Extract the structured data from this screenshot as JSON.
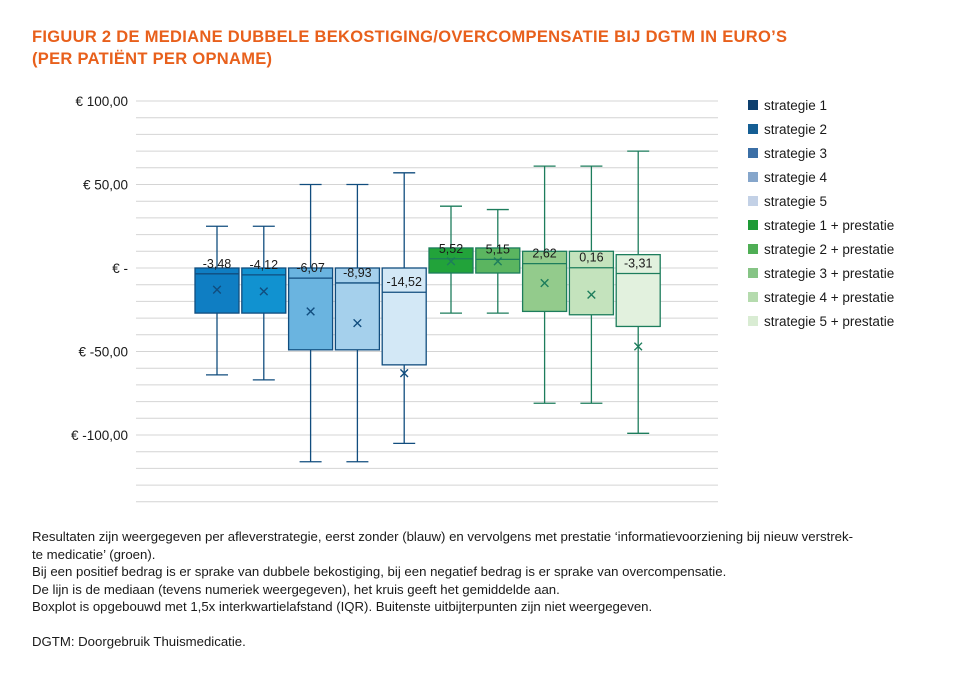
{
  "title_line1": "FIGUUR 2 DE MEDIANE DUBBELE BEKOSTIGING/OVERCOMPENSATIE BIJ DGTM IN EURO’S",
  "title_line2": "(PER PATIËNT PER OPNAME)",
  "notes": [
    "Resultaten zijn weergegeven per afleverstrategie, eerst zonder (blauw) en vervolgens met prestatie ‘informatievoorziening bij nieuw verstrek-",
    "te medicatie’ (groen).",
    "Bij een positief bedrag is er sprake van dubbele bekostiging, bij een negatief bedrag is er sprake van overcompensatie.",
    "De lijn is de mediaan (tevens numeriek weergegeven), het kruis geeft het gemiddelde aan.",
    "Boxplot is opgebouwd met 1,5x interkwartielafstand (IQR). Buitenste uitbijterpunten zijn niet weergegeven."
  ],
  "footer": "DGTM: Doorgebruik Thuismedicatie.",
  "chart_data": {
    "type": "boxplot",
    "ylim": [
      -140,
      100
    ],
    "y_ticks": [
      {
        "value": 100,
        "label": "€ 100,00"
      },
      {
        "value": 50,
        "label": "€ 50,00"
      },
      {
        "value": 0,
        "label": "€ -"
      },
      {
        "value": -50,
        "label": "€ -50,00"
      },
      {
        "value": -100,
        "label": "€ -100,00"
      }
    ],
    "grid_step": 10,
    "legend_position": "right",
    "series": [
      {
        "name": "strategie 1",
        "legend_color": "#0d3f6e",
        "fill": "#0f7ec3",
        "stroke": "#114d7e",
        "whisker_low": -64,
        "q1": -27,
        "median": -3.48,
        "q3": 0,
        "whisker_high": 25,
        "mean": -13,
        "median_label": "-3,48"
      },
      {
        "name": "strategie 2",
        "legend_color": "#155e94",
        "fill": "#1192d0",
        "stroke": "#114d7e",
        "whisker_low": -67,
        "q1": -27,
        "median": -4.12,
        "q3": 0,
        "whisker_high": 25,
        "mean": -14,
        "median_label": "-4,12"
      },
      {
        "name": "strategie 3",
        "legend_color": "#3b6fa6",
        "fill": "#6ab4e0",
        "stroke": "#114d7e",
        "whisker_low": -116,
        "q1": -49,
        "median": -6.07,
        "q3": 0,
        "whisker_high": 50,
        "mean": -26,
        "median_label": "-6,07"
      },
      {
        "name": "strategie 4",
        "legend_color": "#86a6cb",
        "fill": "#a5d0ec",
        "stroke": "#114d7e",
        "whisker_low": -116,
        "q1": -49,
        "median": -8.93,
        "q3": 0,
        "whisker_high": 50,
        "mean": -33,
        "median_label": "-8,93"
      },
      {
        "name": "strategie 5",
        "legend_color": "#c3d1e6",
        "fill": "#d3e8f6",
        "stroke": "#114d7e",
        "whisker_low": -105,
        "q1": -58,
        "median": -14.52,
        "q3": 0,
        "whisker_high": 57,
        "mean": -63,
        "median_label": "-14,52"
      },
      {
        "name": "strategie 1 + prestatie",
        "legend_color": "#1e9a36",
        "fill": "#22a33a",
        "stroke": "#1d7d5c",
        "whisker_low": -27,
        "q1": -3,
        "median": 5.52,
        "q3": 12,
        "whisker_high": 37,
        "mean": 4,
        "median_label": "5,52"
      },
      {
        "name": "strategie 2 + prestatie",
        "legend_color": "#4fae55",
        "fill": "#5bb560",
        "stroke": "#1d7d5c",
        "whisker_low": -27,
        "q1": -3,
        "median": 5.15,
        "q3": 12,
        "whisker_high": 35,
        "mean": 4,
        "median_label": "5,15"
      },
      {
        "name": "strategie 3 + prestatie",
        "legend_color": "#86c485",
        "fill": "#93cb8c",
        "stroke": "#1d7d5c",
        "whisker_low": -81,
        "q1": -26,
        "median": 2.62,
        "q3": 10,
        "whisker_high": 61,
        "mean": -9,
        "median_label": "2,62"
      },
      {
        "name": "strategie 4 + prestatie",
        "legend_color": "#b5dbae",
        "fill": "#c4e3bd",
        "stroke": "#1d7d5c",
        "whisker_low": -81,
        "q1": -28,
        "median": 0.16,
        "q3": 10,
        "whisker_high": 61,
        "mean": -16,
        "median_label": "0,16"
      },
      {
        "name": "strategie 5 + prestatie",
        "legend_color": "#d9ecd3",
        "fill": "#e2f1de",
        "stroke": "#1d7d5c",
        "whisker_low": -99,
        "q1": -35,
        "median": -3.31,
        "q3": 8,
        "whisker_high": 70,
        "mean": -47,
        "median_label": "-3,31"
      }
    ]
  }
}
